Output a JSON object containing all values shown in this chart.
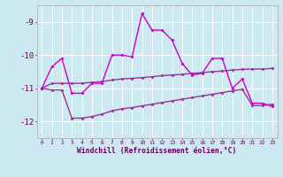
{
  "xlabel": "Windchill (Refroidissement éolien,°C)",
  "x": [
    0,
    1,
    2,
    3,
    4,
    5,
    6,
    7,
    8,
    9,
    10,
    11,
    12,
    13,
    14,
    15,
    16,
    17,
    18,
    19,
    20,
    21,
    22,
    23
  ],
  "y_main": [
    -11.0,
    -10.35,
    -10.1,
    -11.15,
    -11.15,
    -10.85,
    -10.85,
    -10.0,
    -10.0,
    -10.05,
    -8.75,
    -9.25,
    -9.25,
    -9.55,
    -10.25,
    -10.6,
    -10.55,
    -10.1,
    -10.1,
    -11.0,
    -10.72,
    -11.45,
    -11.45,
    -11.55
  ],
  "y_upper": [
    -11.0,
    -10.85,
    -10.85,
    -10.85,
    -10.85,
    -10.82,
    -10.8,
    -10.75,
    -10.72,
    -10.7,
    -10.68,
    -10.65,
    -10.62,
    -10.6,
    -10.58,
    -10.55,
    -10.53,
    -10.5,
    -10.48,
    -10.45,
    -10.43,
    -10.42,
    -10.42,
    -10.4
  ],
  "y_lower": [
    -11.0,
    -11.05,
    -11.05,
    -11.9,
    -11.9,
    -11.85,
    -11.78,
    -11.68,
    -11.62,
    -11.58,
    -11.53,
    -11.48,
    -11.43,
    -11.38,
    -11.33,
    -11.28,
    -11.23,
    -11.18,
    -11.13,
    -11.08,
    -11.03,
    -11.52,
    -11.52,
    -11.48
  ],
  "color_main": "#cc00cc",
  "color_upper": "#993399",
  "color_lower": "#993399",
  "bg_color": "#cce8f0",
  "grid_color": "#ffffff",
  "ylim": [
    -12.5,
    -8.5
  ],
  "yticks": [
    -12,
    -11,
    -10,
    -9
  ],
  "xlim": [
    -0.5,
    23.5
  ],
  "marker": "D",
  "markersize": 2,
  "linewidth": 1.0
}
